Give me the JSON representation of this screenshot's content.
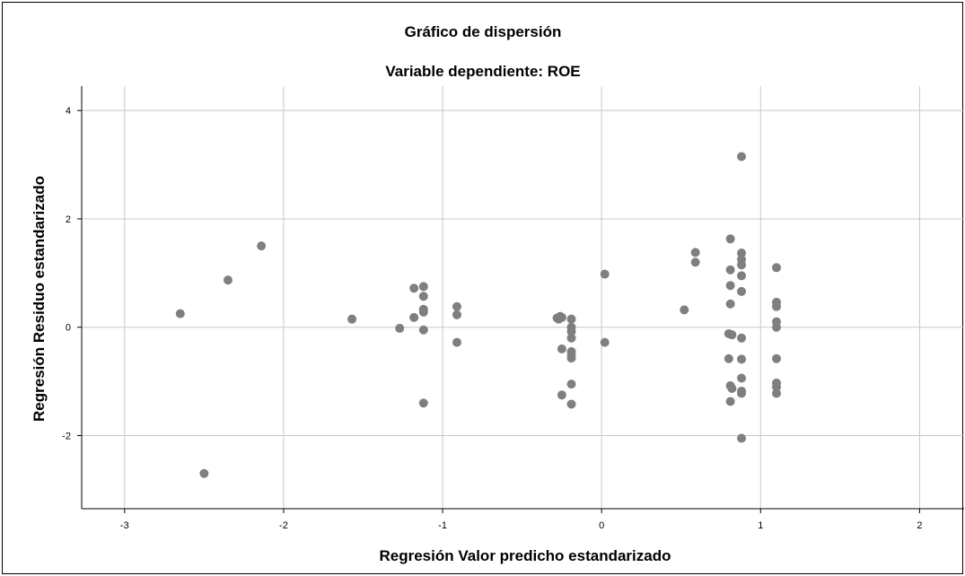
{
  "chart_data": {
    "type": "scatter",
    "title": "Gráfico de dispersión",
    "subtitle": "Variable dependiente: ROE",
    "xlabel": "Regresión Valor predicho estandarizado",
    "ylabel": "Regresión Residuo estandarizado",
    "xlim": [
      -3.27,
      2.28
    ],
    "ylim": [
      -3.35,
      4.45
    ],
    "x_ticks": [
      -3,
      -2,
      -1,
      0,
      1,
      2
    ],
    "y_ticks": [
      -2,
      0,
      2,
      4
    ],
    "x_tick_labels": [
      "-3",
      "-2",
      "-1",
      "0",
      "1",
      "2"
    ],
    "y_tick_labels": [
      "-2",
      "0",
      "2",
      "4"
    ],
    "grid": true,
    "legend": "none",
    "point_color": "#7f7f7f",
    "grid_color": "#c8c8c8",
    "points": [
      {
        "x": -2.65,
        "y": 0.25
      },
      {
        "x": -2.5,
        "y": -2.7
      },
      {
        "x": -2.35,
        "y": 0.87
      },
      {
        "x": -2.14,
        "y": 1.5
      },
      {
        "x": -1.57,
        "y": 0.15
      },
      {
        "x": -1.27,
        "y": -0.02
      },
      {
        "x": -1.18,
        "y": 0.72
      },
      {
        "x": -1.18,
        "y": 0.18
      },
      {
        "x": -1.12,
        "y": 0.75
      },
      {
        "x": -1.12,
        "y": 0.57
      },
      {
        "x": -1.12,
        "y": 0.33
      },
      {
        "x": -1.12,
        "y": 0.28
      },
      {
        "x": -1.12,
        "y": -0.05
      },
      {
        "x": -1.12,
        "y": -1.4
      },
      {
        "x": -0.91,
        "y": 0.38
      },
      {
        "x": -0.91,
        "y": 0.23
      },
      {
        "x": -0.91,
        "y": -0.28
      },
      {
        "x": -0.28,
        "y": 0.17
      },
      {
        "x": -0.27,
        "y": 0.15
      },
      {
        "x": -0.26,
        "y": 0.2
      },
      {
        "x": -0.25,
        "y": 0.18
      },
      {
        "x": -0.25,
        "y": -0.4
      },
      {
        "x": -0.25,
        "y": -1.25
      },
      {
        "x": -0.19,
        "y": 0.15
      },
      {
        "x": -0.19,
        "y": 0.0
      },
      {
        "x": -0.19,
        "y": -0.08
      },
      {
        "x": -0.19,
        "y": -0.2
      },
      {
        "x": -0.19,
        "y": -0.45
      },
      {
        "x": -0.19,
        "y": -0.52
      },
      {
        "x": -0.19,
        "y": -0.57
      },
      {
        "x": -0.19,
        "y": -1.05
      },
      {
        "x": -0.19,
        "y": -1.42
      },
      {
        "x": 0.02,
        "y": 0.98
      },
      {
        "x": 0.02,
        "y": -0.28
      },
      {
        "x": 0.52,
        "y": 0.32
      },
      {
        "x": 0.59,
        "y": 1.38
      },
      {
        "x": 0.59,
        "y": 1.2
      },
      {
        "x": 0.81,
        "y": 1.63
      },
      {
        "x": 0.81,
        "y": 1.06
      },
      {
        "x": 0.81,
        "y": 0.77
      },
      {
        "x": 0.81,
        "y": 0.43
      },
      {
        "x": 0.8,
        "y": -0.12
      },
      {
        "x": 0.82,
        "y": -0.14
      },
      {
        "x": 0.8,
        "y": -0.58
      },
      {
        "x": 0.81,
        "y": -1.08
      },
      {
        "x": 0.82,
        "y": -1.13
      },
      {
        "x": 0.81,
        "y": -1.37
      },
      {
        "x": 0.88,
        "y": 3.15
      },
      {
        "x": 0.88,
        "y": 1.37
      },
      {
        "x": 0.88,
        "y": 1.25
      },
      {
        "x": 0.88,
        "y": 1.15
      },
      {
        "x": 0.88,
        "y": 0.95
      },
      {
        "x": 0.88,
        "y": 0.66
      },
      {
        "x": 0.88,
        "y": -0.2
      },
      {
        "x": 0.88,
        "y": -0.59
      },
      {
        "x": 0.88,
        "y": -0.94
      },
      {
        "x": 0.88,
        "y": -1.18
      },
      {
        "x": 0.88,
        "y": -1.22
      },
      {
        "x": 0.88,
        "y": -2.05
      },
      {
        "x": 1.1,
        "y": 1.1
      },
      {
        "x": 1.1,
        "y": 0.46
      },
      {
        "x": 1.1,
        "y": 0.38
      },
      {
        "x": 1.1,
        "y": 0.1
      },
      {
        "x": 1.1,
        "y": 0.0
      },
      {
        "x": 1.1,
        "y": -0.58
      },
      {
        "x": 1.1,
        "y": -1.03
      },
      {
        "x": 1.1,
        "y": -1.1
      },
      {
        "x": 1.1,
        "y": -1.22
      }
    ]
  }
}
